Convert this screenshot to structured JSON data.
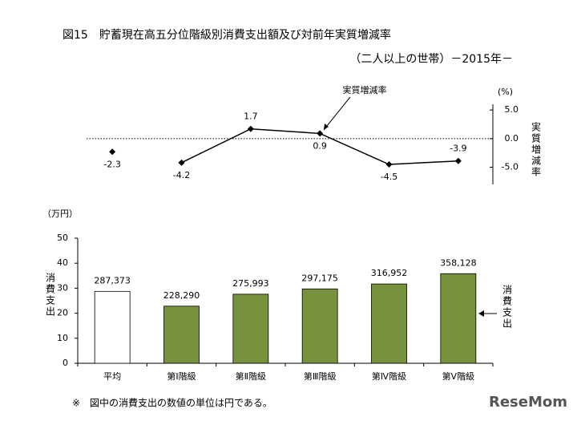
{
  "title": "図15　貯蓄現在高五分位階級別消費支出額及び対前年実質増減率",
  "subtitle": "（二人以上の世帯）－2015年－",
  "footnote": "※　図中の消費支出の数値の単位は円である。",
  "watermark": "ReseMom",
  "chart_data": [
    {
      "type": "line",
      "y_unit": "(%)",
      "y_axis_title": "実質増減率",
      "annotation": "実質増減率",
      "ylim": [
        -8,
        6
      ],
      "yticks": [
        {
          "value": 5,
          "label": "5.0"
        },
        {
          "value": 0,
          "label": "0.0"
        },
        {
          "value": -5,
          "label": "-5.0"
        }
      ],
      "zero_line": true,
      "series": [
        {
          "values": [
            -2.3,
            null,
            null,
            null,
            null,
            null
          ],
          "color": "#000000",
          "line": false
        },
        {
          "name": "実質増減率",
          "values": [
            null,
            -4.2,
            1.7,
            0.9,
            -4.5,
            -3.9
          ],
          "color": "#000000",
          "line": true
        }
      ]
    },
    {
      "type": "bar",
      "y_unit": "（万円）",
      "y_axis_title": "消費支出",
      "annotation": "消費支出",
      "categories": [
        "平均",
        "第Ⅰ階級",
        "第Ⅱ階級",
        "第Ⅲ階級",
        "第Ⅳ階級",
        "第Ⅴ階級"
      ],
      "values": [
        28.7373,
        22.829,
        27.5993,
        29.7175,
        31.6952,
        35.8128
      ],
      "value_labels": [
        "287,373",
        "228,290",
        "275,993",
        "297,175",
        "316,952",
        "358,128"
      ],
      "colors": [
        "#ffffff",
        "#76923c",
        "#76923c",
        "#76923c",
        "#76923c",
        "#76923c"
      ],
      "ylim": [
        0,
        50
      ],
      "yticks": [
        0,
        10,
        20,
        30,
        40,
        50
      ]
    }
  ]
}
